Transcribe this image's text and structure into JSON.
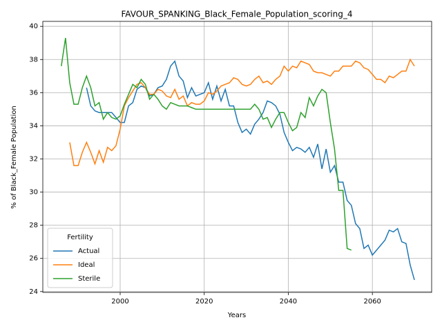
{
  "chart_data": {
    "type": "line",
    "title": "FAVOUR_SPANKING_Black_Female_Population_scoring_4",
    "x_label": "Years",
    "y_label": "% of Black_Female Population",
    "x": [
      1986,
      1987,
      1988,
      1989,
      1990,
      1991,
      1992,
      1993,
      1994,
      1995,
      1996,
      1997,
      1998,
      1999,
      2000,
      2001,
      2002,
      2003,
      2004,
      2005,
      2006,
      2007,
      2008,
      2009,
      2010,
      2011,
      2012,
      2013,
      2014,
      2015,
      2016,
      2017,
      2018,
      2019,
      2020,
      2021,
      2022,
      2023,
      2024,
      2025,
      2026,
      2027,
      2028,
      2029,
      2030,
      2031,
      2032,
      2033,
      2034,
      2035,
      2036,
      2037,
      2038,
      2039,
      2040,
      2041,
      2042,
      2043,
      2044,
      2045,
      2046,
      2047,
      2048,
      2049,
      2050,
      2051,
      2052,
      2053,
      2054,
      2055,
      2056,
      2057,
      2058,
      2059,
      2060,
      2061,
      2062,
      2063,
      2064,
      2065,
      2066,
      2067,
      2068,
      2069,
      2070
    ],
    "series": [
      {
        "name": "Actual",
        "color": "#1f77b4",
        "values": [
          null,
          null,
          null,
          null,
          null,
          null,
          36.3,
          35.2,
          34.9,
          34.8,
          34.8,
          34.8,
          34.8,
          34.5,
          34.2,
          34.2,
          35.2,
          35.4,
          36.2,
          36.4,
          36.3,
          35.8,
          35.9,
          36.3,
          36.4,
          36.8,
          37.6,
          37.9,
          37.0,
          36.7,
          35.7,
          36.3,
          35.8,
          35.9,
          36.0,
          36.6,
          35.6,
          36.4,
          35.5,
          36.2,
          35.2,
          35.2,
          34.2,
          33.6,
          33.8,
          33.5,
          34.1,
          34.4,
          34.8,
          35.5,
          35.4,
          35.2,
          34.7,
          33.6,
          33.0,
          32.5,
          32.7,
          32.6,
          32.4,
          32.7,
          32.1,
          32.9,
          31.4,
          32.6,
          31.2,
          31.6,
          30.6,
          30.6,
          29.5,
          29.2,
          28.1,
          27.8,
          26.6,
          26.8,
          26.2,
          26.5,
          26.8,
          27.1,
          27.7,
          27.6,
          27.8,
          27.0,
          26.9,
          25.6,
          24.7
        ]
      },
      {
        "name": "Ideal",
        "color": "#ff7f0e",
        "values": [
          null,
          null,
          33.0,
          31.6,
          31.6,
          32.4,
          33.0,
          32.4,
          31.7,
          32.5,
          31.8,
          32.7,
          32.5,
          32.8,
          33.8,
          35.2,
          35.7,
          36.1,
          36.5,
          36.6,
          36.3,
          35.9,
          35.9,
          36.2,
          36.1,
          35.8,
          35.7,
          36.2,
          35.6,
          35.8,
          35.2,
          35.4,
          35.3,
          35.3,
          35.5,
          36.0,
          35.9,
          36.1,
          36.4,
          36.5,
          36.6,
          36.9,
          36.8,
          36.5,
          36.4,
          36.5,
          36.8,
          37.0,
          36.6,
          36.7,
          36.5,
          36.8,
          37.0,
          37.6,
          37.3,
          37.6,
          37.5,
          37.9,
          37.8,
          37.7,
          37.3,
          37.2,
          37.2,
          37.1,
          37.0,
          37.3,
          37.3,
          37.6,
          37.6,
          37.6,
          37.9,
          37.8,
          37.5,
          37.4,
          37.1,
          36.8,
          36.8,
          36.6,
          37.0,
          36.9,
          37.1,
          37.3,
          37.3,
          38.0,
          37.6
        ]
      },
      {
        "name": "Sterile",
        "color": "#2ca02c",
        "values": [
          37.6,
          39.3,
          36.6,
          35.3,
          35.3,
          36.3,
          37.0,
          36.3,
          35.2,
          35.4,
          34.4,
          34.8,
          34.5,
          34.4,
          34.6,
          35.3,
          35.9,
          36.5,
          36.3,
          36.8,
          36.5,
          35.6,
          35.9,
          35.6,
          35.2,
          35.0,
          35.4,
          35.3,
          35.2,
          35.2,
          35.2,
          35.1,
          35.0,
          35.0,
          35.0,
          35.0,
          35.0,
          35.0,
          35.0,
          35.0,
          35.0,
          35.0,
          35.0,
          35.0,
          35.0,
          35.0,
          35.3,
          35.0,
          34.4,
          34.5,
          33.9,
          34.4,
          34.8,
          34.8,
          34.2,
          33.7,
          33.9,
          34.8,
          34.5,
          35.7,
          35.2,
          35.8,
          36.2,
          36.0,
          34.2,
          32.6,
          30.1,
          30.1,
          26.6,
          26.5,
          null,
          null,
          null,
          null,
          null,
          null,
          null,
          null,
          null,
          null,
          null,
          null,
          null,
          null,
          null
        ]
      }
    ],
    "xlim": [
      1981.6,
      2074.1
    ],
    "ylim": [
      23.95,
      40.3
    ],
    "xticks": [
      2000,
      2020,
      2040,
      2060
    ],
    "yticks": [
      24,
      26,
      28,
      30,
      32,
      34,
      36,
      38,
      40
    ],
    "grid": true,
    "legend_title": "Fertility",
    "legend_position": "lower left"
  }
}
